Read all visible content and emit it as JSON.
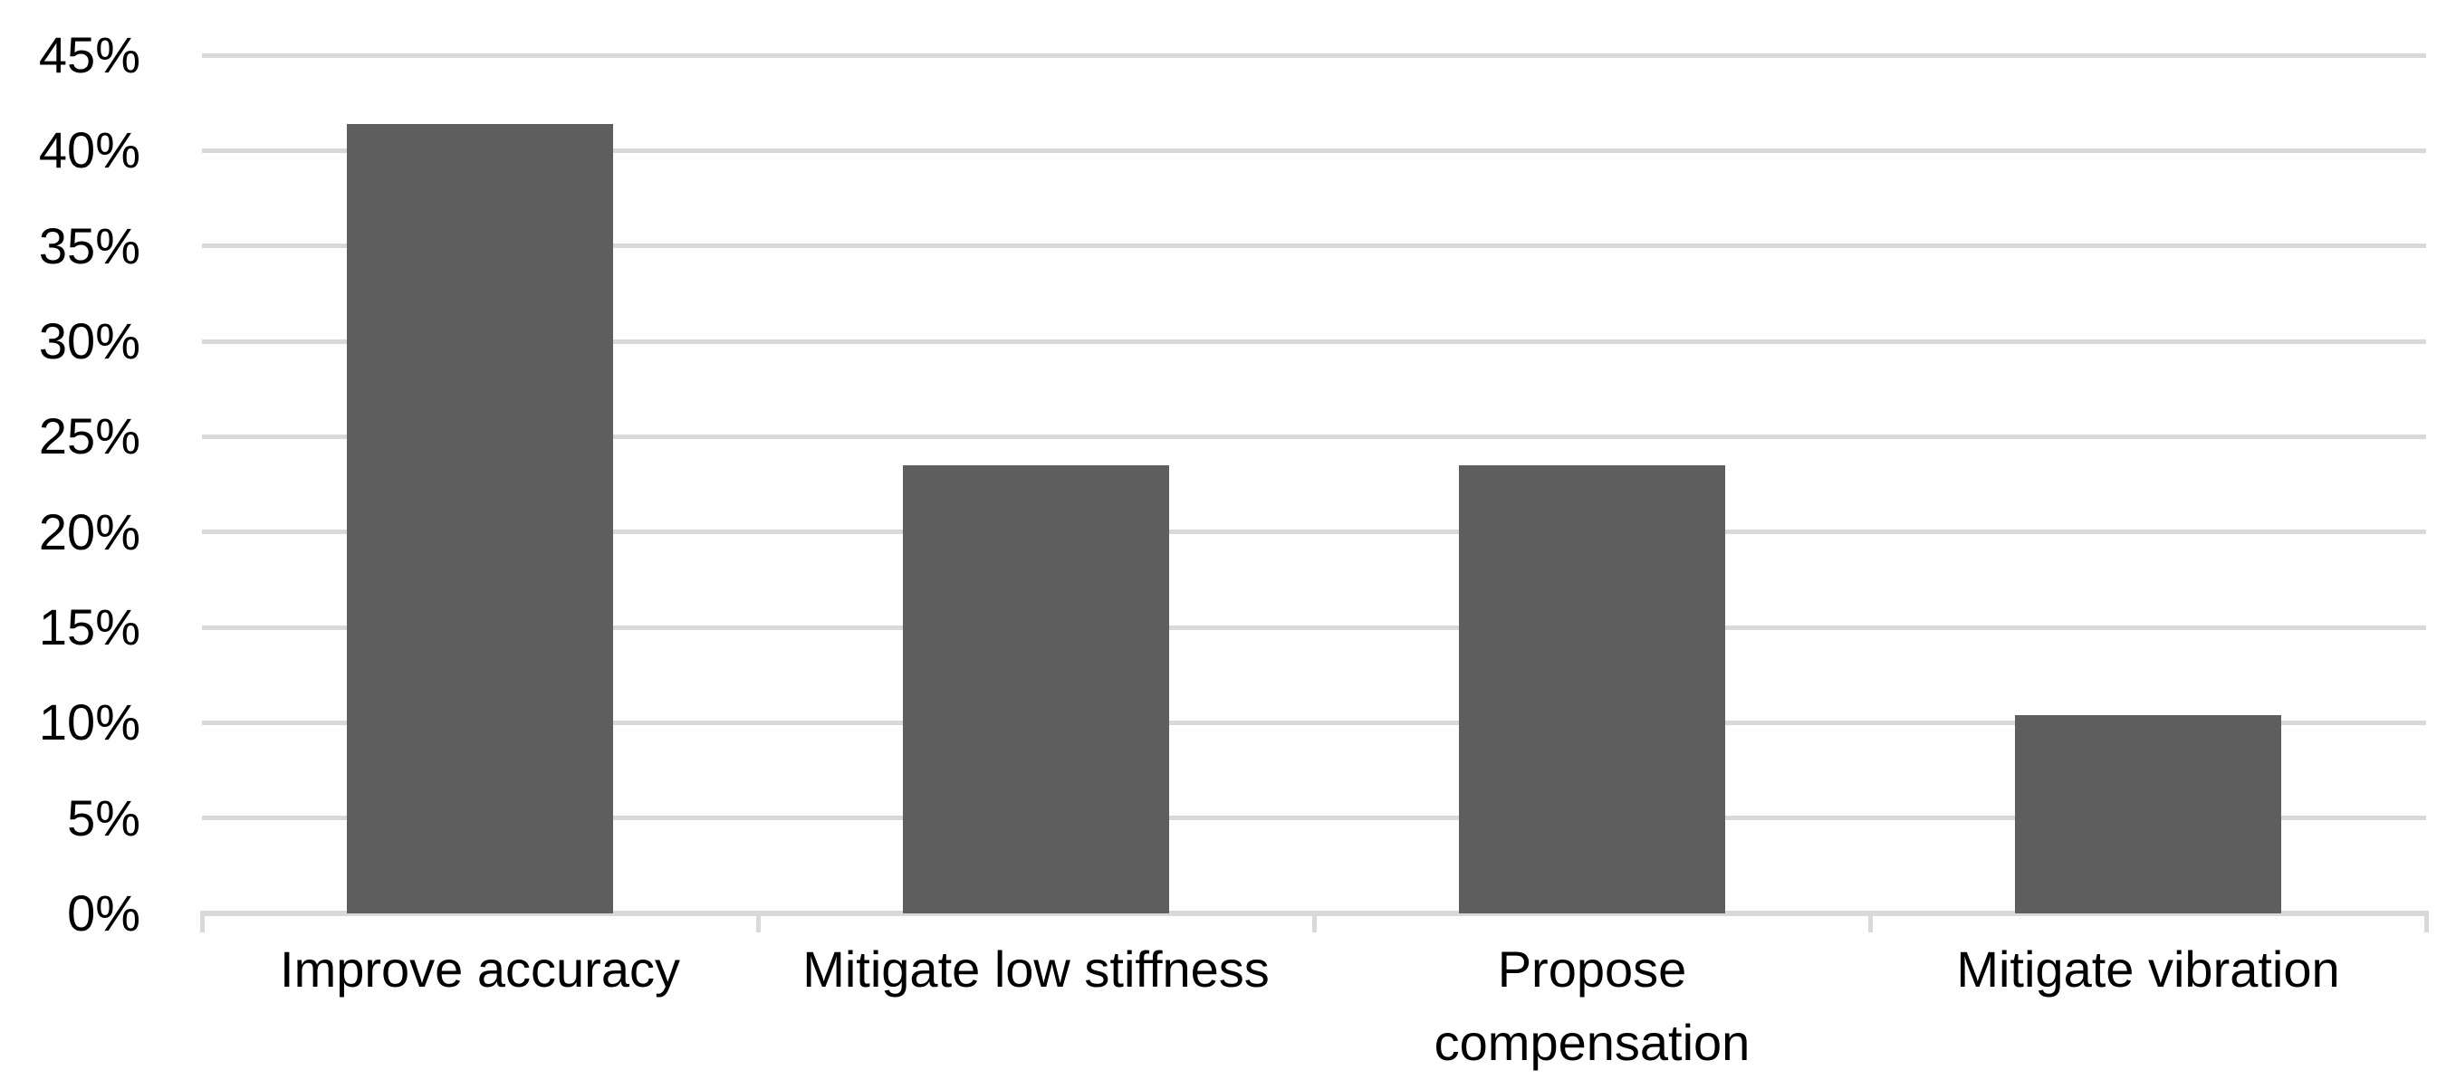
{
  "chart_data": {
    "type": "bar",
    "title": "",
    "xlabel": "",
    "ylabel": "",
    "categories": [
      "Improve accuracy",
      "Mitigate low stiffness",
      "Propose\ncompensation",
      "Mitigate vibration"
    ],
    "values": [
      41.4,
      23.5,
      23.5,
      10.4
    ],
    "value_unit": "%",
    "ylim": [
      0,
      45
    ],
    "ytick_step": 5,
    "ytick_labels": [
      "0%",
      "5%",
      "10%",
      "15%",
      "20%",
      "25%",
      "30%",
      "35%",
      "40%",
      "45%"
    ],
    "grid": true,
    "legend": "none",
    "colors": {
      "bar_fill": "#5E5E5E",
      "gridline": "#D9D9D9",
      "axis_line": "#D9D9D9",
      "tick_mark": "#D9D9D9",
      "label_text": "#000000",
      "background": "#FFFFFF"
    }
  }
}
